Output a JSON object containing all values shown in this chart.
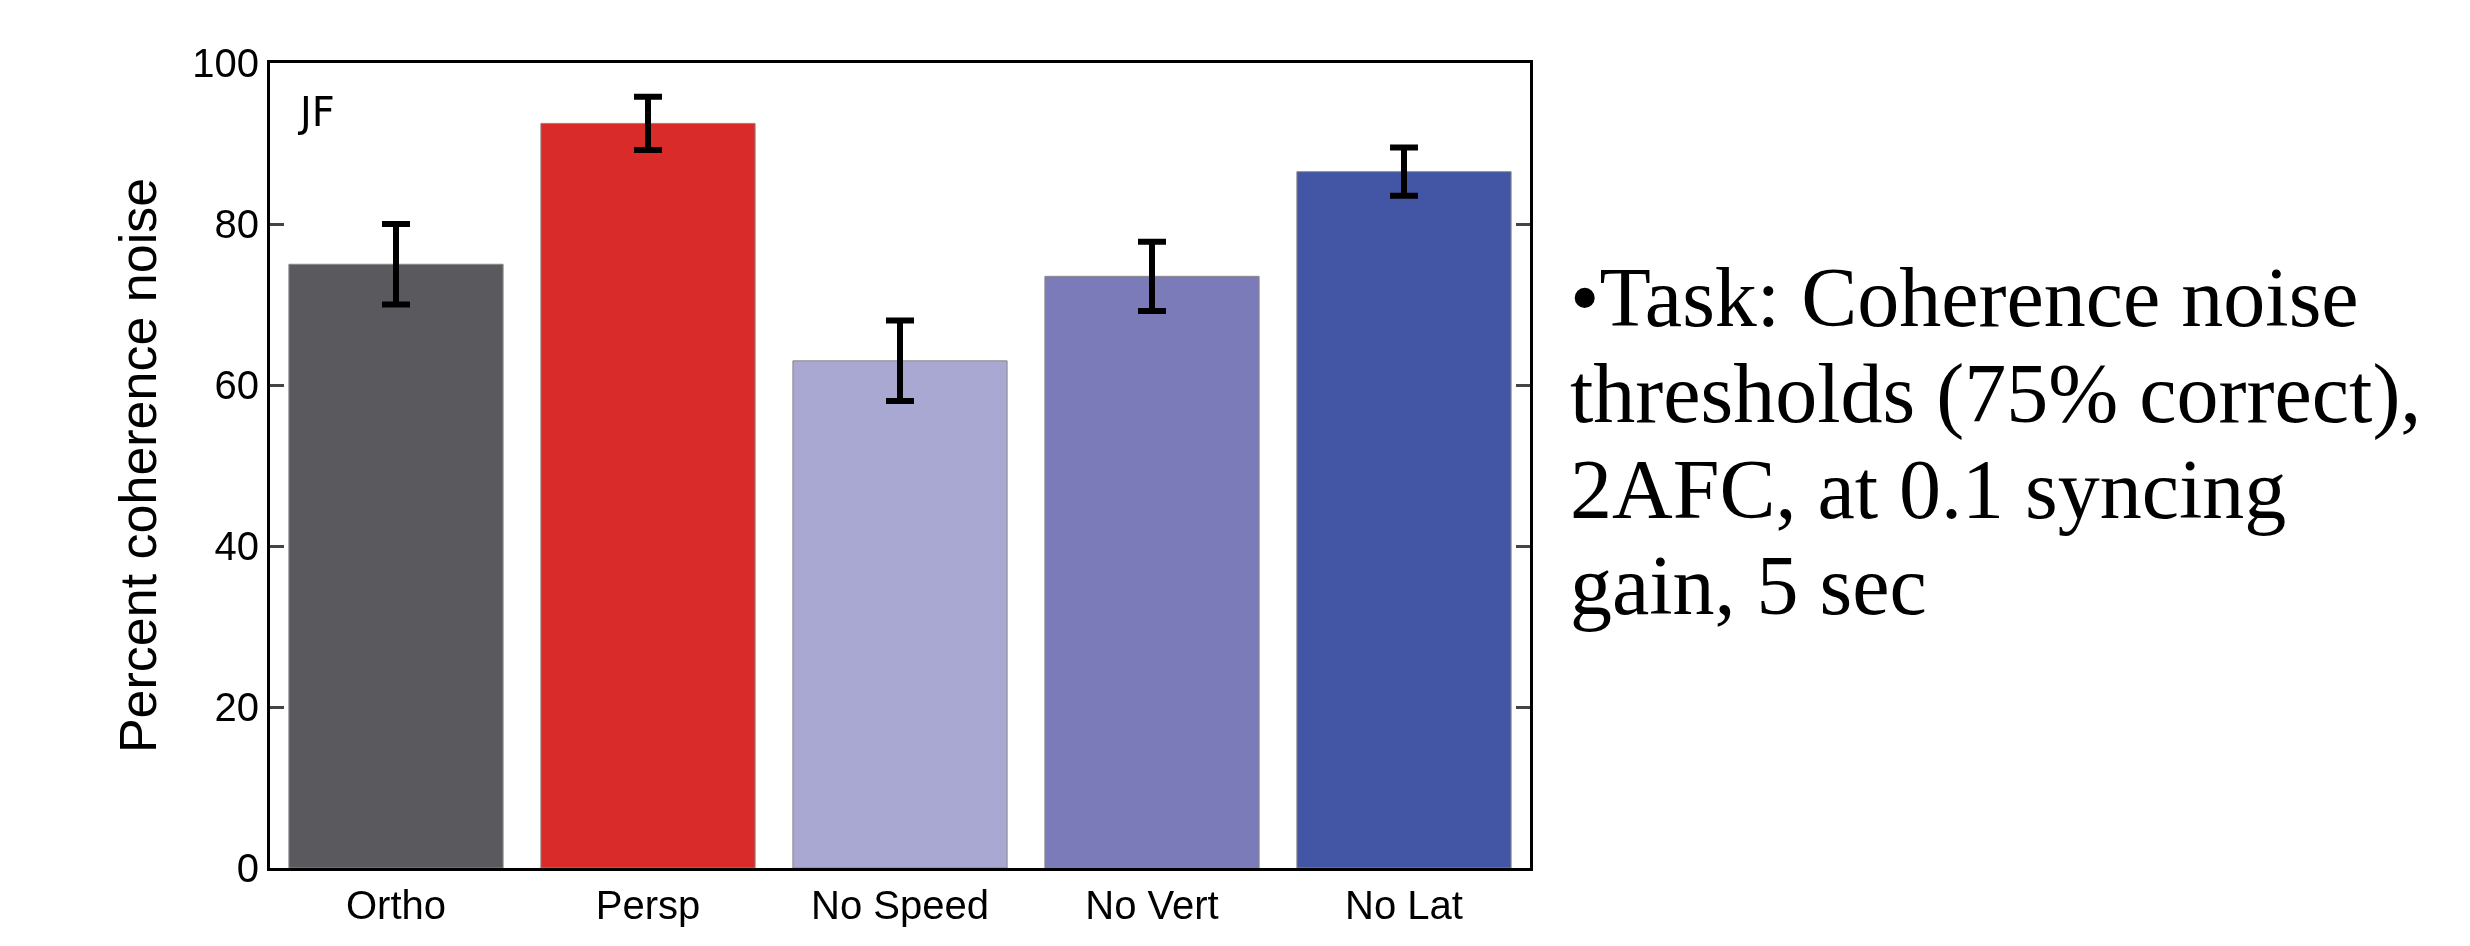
{
  "chart_data": {
    "type": "bar",
    "ylabel": "Percent coherence noise",
    "categories": [
      "Ortho",
      "Persp",
      "No Speed",
      "No Vert",
      "No Lat"
    ],
    "values": [
      75,
      92.5,
      63,
      73.5,
      86.5
    ],
    "errors": [
      5,
      3.3,
      5,
      4.3,
      3
    ],
    "colors": [
      "#5a595e",
      "#d92b29",
      "#a8a8d2",
      "#7b7bb9",
      "#4356a5"
    ],
    "ylim": [
      0,
      100
    ],
    "yticks": [
      0,
      20,
      40,
      60,
      80,
      100
    ],
    "grid": false,
    "annotations": [
      "JF",
      "•Task: Coherence noise thresholds (75% correct), 2AFC, at 0.1 syncing gain, 5 sec"
    ]
  }
}
